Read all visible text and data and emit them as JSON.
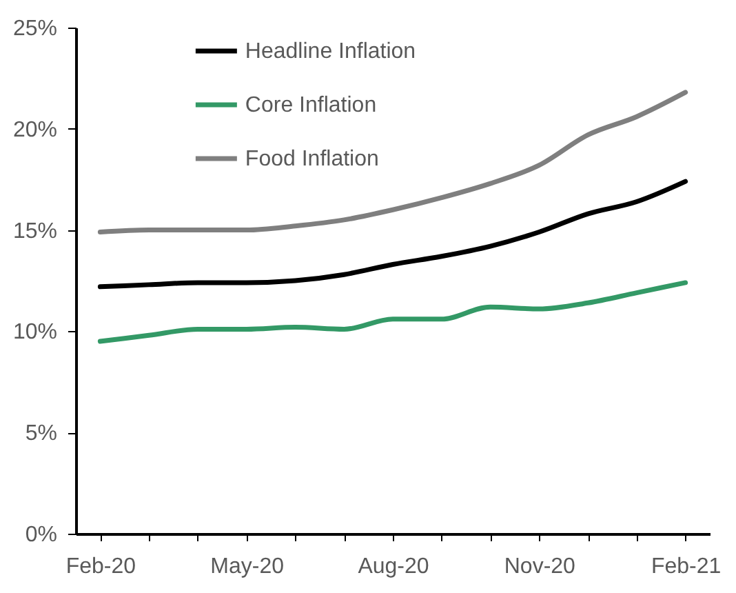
{
  "chart_data": {
    "type": "line",
    "categories": [
      "Feb-20",
      null,
      null,
      "May-20",
      null,
      null,
      "Aug-20",
      null,
      null,
      "Nov-20",
      null,
      null,
      "Feb-21"
    ],
    "series": [
      {
        "name": "Headline Inflation",
        "color": "#000000",
        "values": [
          12.2,
          12.3,
          12.4,
          12.4,
          12.5,
          12.8,
          13.3,
          13.7,
          14.2,
          14.9,
          15.8,
          16.4,
          17.4
        ]
      },
      {
        "name": "Core Inflation",
        "color": "#339966",
        "values": [
          9.5,
          9.8,
          10.1,
          10.1,
          10.2,
          10.1,
          10.6,
          10.6,
          11.2,
          11.1,
          11.4,
          11.9,
          12.4
        ]
      },
      {
        "name": "Food Inflation",
        "color": "#7f7f7f",
        "values": [
          14.9,
          15.0,
          15.0,
          15.0,
          15.2,
          15.5,
          16.0,
          16.6,
          17.3,
          18.2,
          19.7,
          20.6,
          21.8
        ]
      }
    ],
    "ylim": [
      0,
      25
    ],
    "yticks": [
      {
        "value": 0,
        "label": "0%"
      },
      {
        "value": 5,
        "label": "5%"
      },
      {
        "value": 10,
        "label": "10%"
      },
      {
        "value": 15,
        "label": "15%"
      },
      {
        "value": 20,
        "label": "20%"
      },
      {
        "value": 25,
        "label": "25%"
      }
    ],
    "grid": false,
    "legend": "top",
    "marker": "none",
    "line_style": "solid"
  }
}
